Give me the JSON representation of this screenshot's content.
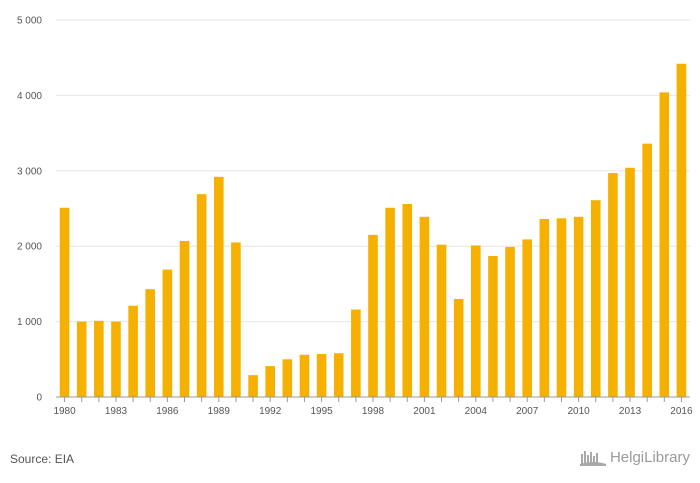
{
  "chart_data": {
    "type": "bar",
    "categories": [
      "1980",
      "1981",
      "1982",
      "1983",
      "1984",
      "1985",
      "1986",
      "1987",
      "1988",
      "1989",
      "1990",
      "1991",
      "1992",
      "1993",
      "1994",
      "1995",
      "1996",
      "1997",
      "1998",
      "1999",
      "2000",
      "2001",
      "2002",
      "2003",
      "2004",
      "2005",
      "2006",
      "2007",
      "2008",
      "2009",
      "2010",
      "2011",
      "2012",
      "2013",
      "2014",
      "2015",
      "2016"
    ],
    "values": [
      2510,
      1000,
      1010,
      1000,
      1210,
      1430,
      1690,
      2070,
      2690,
      2920,
      2050,
      290,
      410,
      500,
      560,
      570,
      580,
      1160,
      2150,
      2510,
      2560,
      2390,
      2020,
      1300,
      2010,
      1870,
      1990,
      2090,
      2360,
      2370,
      2390,
      2610,
      2970,
      3040,
      3360,
      4040,
      4420
    ],
    "x_tick_labels": [
      "1980",
      "1983",
      "1986",
      "1989",
      "1992",
      "1995",
      "1998",
      "2001",
      "2004",
      "2007",
      "2010",
      "2013",
      "2016"
    ],
    "y_tick_labels": [
      "0",
      "1 000",
      "2 000",
      "3 000",
      "4 000",
      "5 000"
    ],
    "y_ticks": [
      0,
      1000,
      2000,
      3000,
      4000,
      5000
    ],
    "ylim": [
      0,
      5000
    ],
    "title": "",
    "xlabel": "",
    "ylabel": "",
    "grid": true,
    "bar_color": "#f5b000"
  },
  "footer": {
    "source": "Source: EIA",
    "brand": "HelgiLibrary"
  }
}
